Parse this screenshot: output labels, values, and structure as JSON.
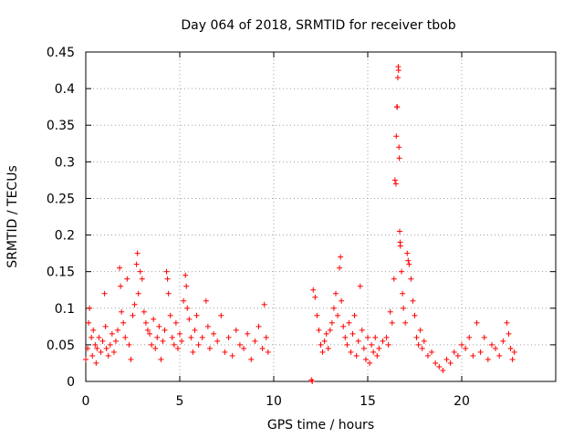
{
  "chart_data": {
    "type": "scatter",
    "title": "Day 064 of 2018, SRMTID for receiver tbob",
    "xlabel": "GPS time / hours",
    "ylabel": "SRMTID / TECUs",
    "xlim": [
      0,
      25
    ],
    "ylim": [
      0,
      0.45
    ],
    "xticks": [
      0,
      5,
      10,
      15,
      20
    ],
    "xtick_labels": [
      "0",
      "5",
      "10",
      "15",
      "20"
    ],
    "yticks": [
      0,
      0.05,
      0.1,
      0.15,
      0.2,
      0.25,
      0.3,
      0.35,
      0.4,
      0.45
    ],
    "ytick_labels": [
      "0",
      "0.05",
      "0.1",
      "0.15",
      "0.2",
      "0.25",
      "0.3",
      "0.35",
      "0.4",
      "0.45"
    ],
    "grid": true,
    "marker": "+",
    "color": "#ff0000",
    "series": [
      {
        "name": "SRMTID",
        "points": [
          [
            0.0,
            0.03
          ],
          [
            0.1,
            0.045
          ],
          [
            0.15,
            0.08
          ],
          [
            0.2,
            0.1
          ],
          [
            0.3,
            0.06
          ],
          [
            0.35,
            0.035
          ],
          [
            0.4,
            0.07
          ],
          [
            0.5,
            0.05
          ],
          [
            0.55,
            0.025
          ],
          [
            0.6,
            0.045
          ],
          [
            0.7,
            0.06
          ],
          [
            0.8,
            0.04
          ],
          [
            0.9,
            0.055
          ],
          [
            1.0,
            0.12
          ],
          [
            1.05,
            0.075
          ],
          [
            1.1,
            0.045
          ],
          [
            1.2,
            0.035
          ],
          [
            1.3,
            0.05
          ],
          [
            1.4,
            0.065
          ],
          [
            1.5,
            0.04
          ],
          [
            1.6,
            0.055
          ],
          [
            1.7,
            0.07
          ],
          [
            1.8,
            0.155
          ],
          [
            1.85,
            0.13
          ],
          [
            1.9,
            0.095
          ],
          [
            2.0,
            0.08
          ],
          [
            2.1,
            0.06
          ],
          [
            2.2,
            0.14
          ],
          [
            2.3,
            0.05
          ],
          [
            2.4,
            0.03
          ],
          [
            2.5,
            0.09
          ],
          [
            2.6,
            0.105
          ],
          [
            2.7,
            0.16
          ],
          [
            2.75,
            0.175
          ],
          [
            2.8,
            0.12
          ],
          [
            2.9,
            0.15
          ],
          [
            3.0,
            0.14
          ],
          [
            3.1,
            0.095
          ],
          [
            3.2,
            0.08
          ],
          [
            3.3,
            0.07
          ],
          [
            3.4,
            0.065
          ],
          [
            3.5,
            0.05
          ],
          [
            3.6,
            0.085
          ],
          [
            3.7,
            0.045
          ],
          [
            3.8,
            0.06
          ],
          [
            3.9,
            0.075
          ],
          [
            4.0,
            0.03
          ],
          [
            4.1,
            0.055
          ],
          [
            4.2,
            0.07
          ],
          [
            4.3,
            0.15
          ],
          [
            4.35,
            0.14
          ],
          [
            4.4,
            0.12
          ],
          [
            4.5,
            0.09
          ],
          [
            4.6,
            0.06
          ],
          [
            4.7,
            0.05
          ],
          [
            4.8,
            0.08
          ],
          [
            4.9,
            0.045
          ],
          [
            5.0,
            0.065
          ],
          [
            5.1,
            0.055
          ],
          [
            5.2,
            0.11
          ],
          [
            5.3,
            0.145
          ],
          [
            5.35,
            0.13
          ],
          [
            5.4,
            0.1
          ],
          [
            5.5,
            0.085
          ],
          [
            5.6,
            0.06
          ],
          [
            5.7,
            0.04
          ],
          [
            5.8,
            0.07
          ],
          [
            5.9,
            0.09
          ],
          [
            6.0,
            0.05
          ],
          [
            6.2,
            0.06
          ],
          [
            6.4,
            0.11
          ],
          [
            6.5,
            0.075
          ],
          [
            6.6,
            0.045
          ],
          [
            6.8,
            0.065
          ],
          [
            7.0,
            0.055
          ],
          [
            7.2,
            0.09
          ],
          [
            7.4,
            0.04
          ],
          [
            7.6,
            0.06
          ],
          [
            7.8,
            0.035
          ],
          [
            8.0,
            0.07
          ],
          [
            8.2,
            0.05
          ],
          [
            8.4,
            0.045
          ],
          [
            8.6,
            0.065
          ],
          [
            8.8,
            0.03
          ],
          [
            9.0,
            0.055
          ],
          [
            9.2,
            0.075
          ],
          [
            9.4,
            0.045
          ],
          [
            9.5,
            0.105
          ],
          [
            9.6,
            0.06
          ],
          [
            9.7,
            0.04
          ],
          [
            12.0,
            0.002
          ],
          [
            12.05,
            0.0
          ],
          [
            12.1,
            0.125
          ],
          [
            12.2,
            0.115
          ],
          [
            12.3,
            0.09
          ],
          [
            12.4,
            0.07
          ],
          [
            12.5,
            0.05
          ],
          [
            12.6,
            0.04
          ],
          [
            12.7,
            0.055
          ],
          [
            12.8,
            0.065
          ],
          [
            12.9,
            0.045
          ],
          [
            13.0,
            0.07
          ],
          [
            13.1,
            0.08
          ],
          [
            13.2,
            0.1
          ],
          [
            13.3,
            0.12
          ],
          [
            13.4,
            0.09
          ],
          [
            13.5,
            0.155
          ],
          [
            13.55,
            0.17
          ],
          [
            13.6,
            0.11
          ],
          [
            13.7,
            0.075
          ],
          [
            13.8,
            0.06
          ],
          [
            13.9,
            0.05
          ],
          [
            14.0,
            0.08
          ],
          [
            14.1,
            0.04
          ],
          [
            14.2,
            0.065
          ],
          [
            14.3,
            0.09
          ],
          [
            14.4,
            0.035
          ],
          [
            14.5,
            0.055
          ],
          [
            14.6,
            0.13
          ],
          [
            14.7,
            0.07
          ],
          [
            14.8,
            0.045
          ],
          [
            14.9,
            0.03
          ],
          [
            15.0,
            0.06
          ],
          [
            15.1,
            0.025
          ],
          [
            15.2,
            0.05
          ],
          [
            15.3,
            0.04
          ],
          [
            15.4,
            0.06
          ],
          [
            15.5,
            0.035
          ],
          [
            15.6,
            0.045
          ],
          [
            15.8,
            0.055
          ],
          [
            16.0,
            0.06
          ],
          [
            16.1,
            0.05
          ],
          [
            16.2,
            0.095
          ],
          [
            16.3,
            0.08
          ],
          [
            16.4,
            0.14
          ],
          [
            16.45,
            0.275
          ],
          [
            16.5,
            0.27
          ],
          [
            16.52,
            0.335
          ],
          [
            16.55,
            0.375
          ],
          [
            16.57,
            0.375
          ],
          [
            16.6,
            0.415
          ],
          [
            16.62,
            0.43
          ],
          [
            16.64,
            0.425
          ],
          [
            16.66,
            0.32
          ],
          [
            16.68,
            0.305
          ],
          [
            16.7,
            0.205
          ],
          [
            16.72,
            0.19
          ],
          [
            16.74,
            0.185
          ],
          [
            16.8,
            0.15
          ],
          [
            16.85,
            0.12
          ],
          [
            16.9,
            0.1
          ],
          [
            17.0,
            0.08
          ],
          [
            17.1,
            0.175
          ],
          [
            17.15,
            0.165
          ],
          [
            17.2,
            0.16
          ],
          [
            17.3,
            0.14
          ],
          [
            17.4,
            0.11
          ],
          [
            17.5,
            0.09
          ],
          [
            17.6,
            0.06
          ],
          [
            17.7,
            0.05
          ],
          [
            17.8,
            0.07
          ],
          [
            17.9,
            0.045
          ],
          [
            18.0,
            0.055
          ],
          [
            18.2,
            0.035
          ],
          [
            18.4,
            0.04
          ],
          [
            18.6,
            0.025
          ],
          [
            18.8,
            0.02
          ],
          [
            19.0,
            0.015
          ],
          [
            19.2,
            0.03
          ],
          [
            19.4,
            0.025
          ],
          [
            19.6,
            0.04
          ],
          [
            19.8,
            0.035
          ],
          [
            20.0,
            0.05
          ],
          [
            20.2,
            0.045
          ],
          [
            20.4,
            0.06
          ],
          [
            20.6,
            0.035
          ],
          [
            20.8,
            0.08
          ],
          [
            21.0,
            0.04
          ],
          [
            21.2,
            0.06
          ],
          [
            21.4,
            0.03
          ],
          [
            21.6,
            0.05
          ],
          [
            21.8,
            0.045
          ],
          [
            22.0,
            0.035
          ],
          [
            22.2,
            0.055
          ],
          [
            22.4,
            0.08
          ],
          [
            22.5,
            0.065
          ],
          [
            22.6,
            0.045
          ],
          [
            22.7,
            0.03
          ],
          [
            22.8,
            0.04
          ]
        ]
      }
    ]
  }
}
